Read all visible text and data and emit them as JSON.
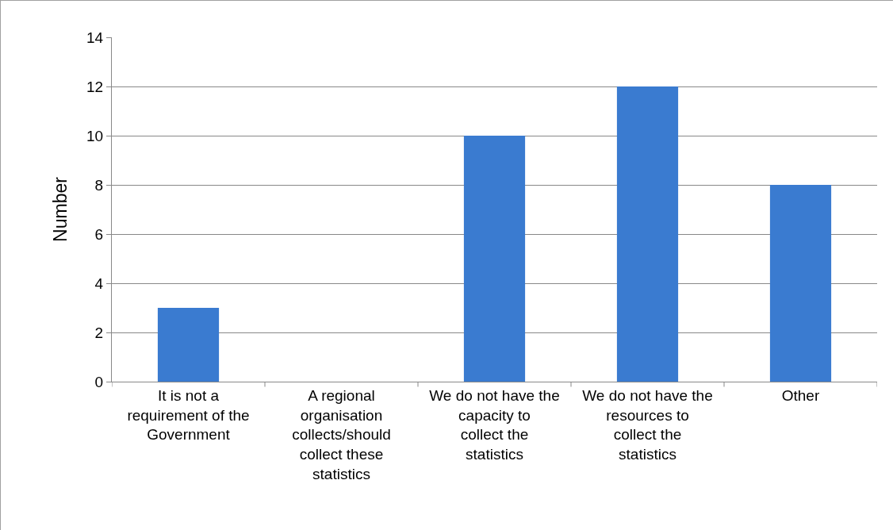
{
  "chart_data": {
    "type": "bar",
    "ylabel": "Number",
    "categories": [
      "It is not a requirement of the Government",
      "A regional organisation collects/should collect these statistics",
      "We do not have the capacity to collect the statistics",
      "We do not have the resources to collect the statistics",
      "Other"
    ],
    "values": [
      3,
      0,
      10,
      12,
      8
    ],
    "color": "#3a7bd0",
    "ylim": [
      0,
      14
    ],
    "yticks": [
      0,
      2,
      4,
      6,
      8,
      10,
      12,
      14
    ],
    "grid": "y",
    "legend": false
  }
}
